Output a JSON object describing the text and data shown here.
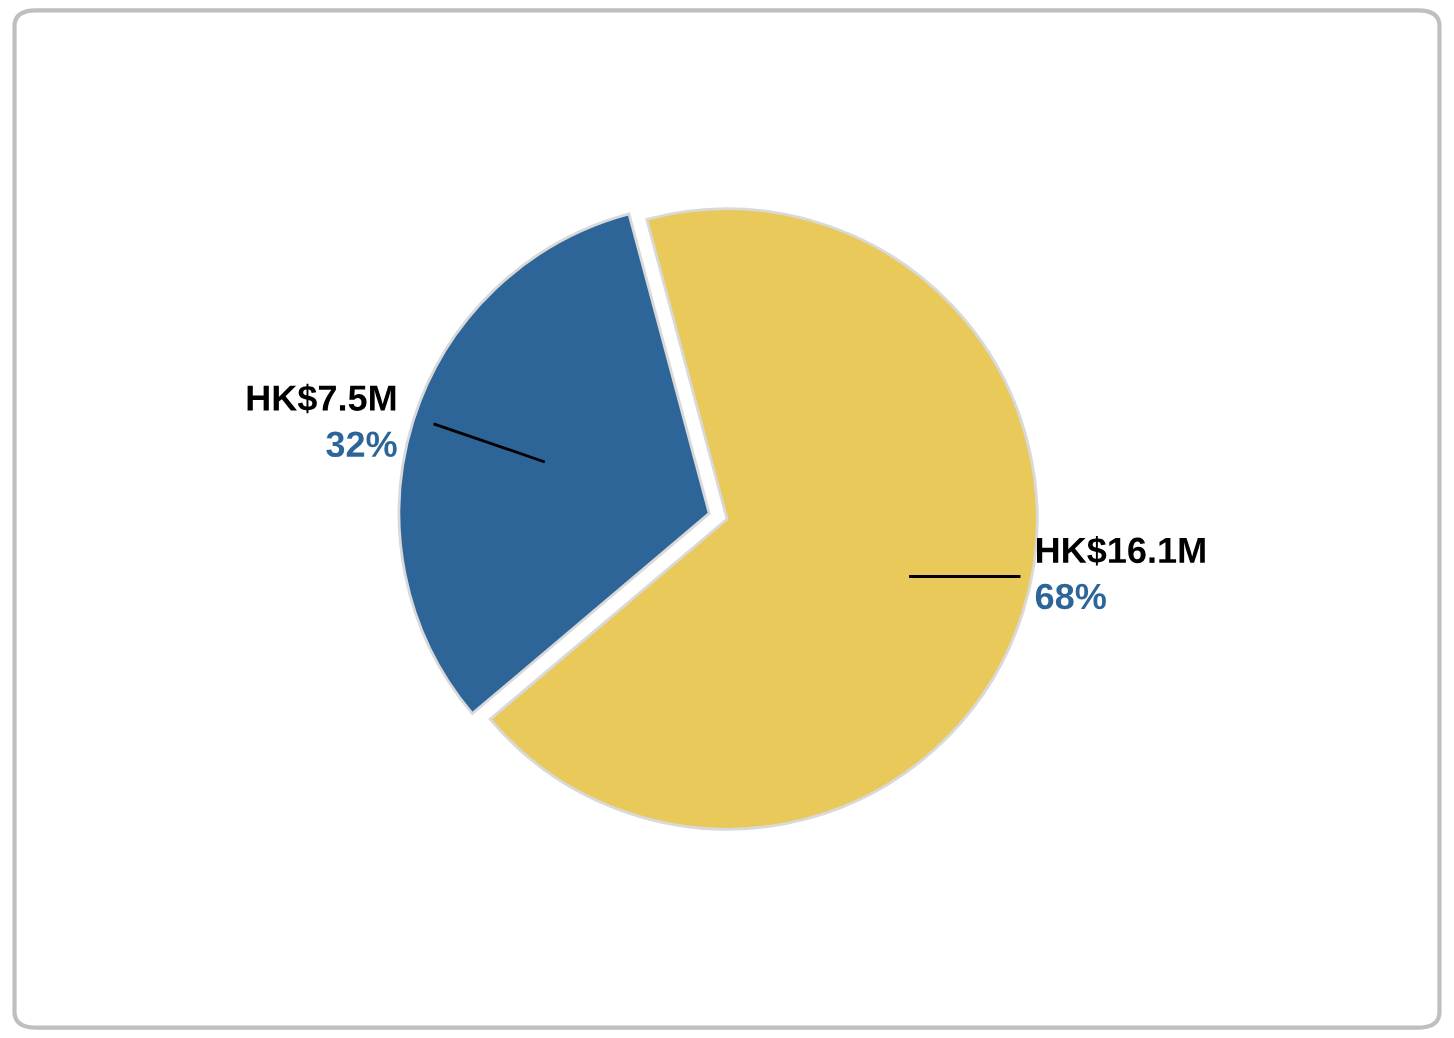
{
  "chart_data": {
    "type": "pie",
    "categories": [
      null,
      null
    ],
    "values": [
      32,
      68
    ],
    "colors": [
      "#2e6599",
      "#e8c95a"
    ],
    "value_labels": [
      "HK$7.5M\n32%",
      "HK$16.1M\n68%"
    ]
  }
}
